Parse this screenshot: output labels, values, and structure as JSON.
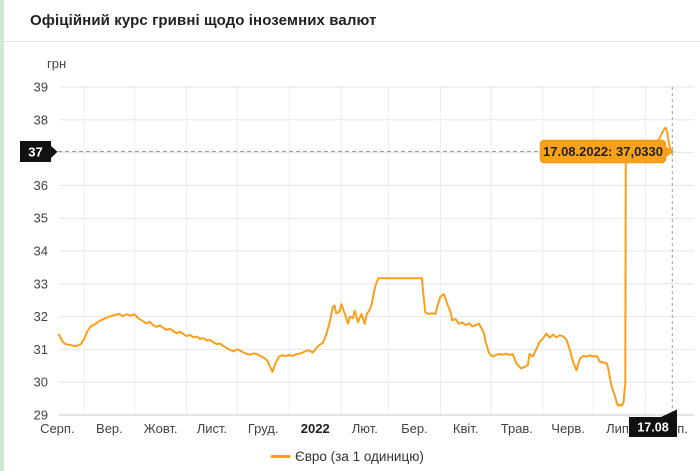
{
  "header": {
    "title": "Офіційний курс гривні щодо іноземних валют"
  },
  "legend": {
    "label": "Євро (за 1 одиницю)"
  },
  "colors": {
    "series": "#f8a01e",
    "tooltip_bg": "#f9a11b",
    "tooltip_border": "#e18d00",
    "tooltip_text": "#222222",
    "badge_bg": "#111111",
    "badge_text": "#ffffff",
    "grid": "#e6e6e6",
    "axis_line": "#c9c9c9",
    "tick_text": "#424242",
    "accent_left_border": "#cfe9d4",
    "crosshair": "#9b9b9b"
  },
  "chart_data": {
    "type": "line",
    "title": "Офіційний курс гривні щодо іноземних валют",
    "ylabel": "грн",
    "xlabel": "",
    "ylim": [
      29,
      39
    ],
    "yticks": [
      29,
      30,
      31,
      32,
      33,
      34,
      35,
      36,
      37,
      38,
      39
    ],
    "x_unit": "days since 17.08.2021",
    "xlim": [
      0,
      378
    ],
    "grid": true,
    "legend_position": "bottom-center",
    "xticklabels": [
      {
        "label": "Серп.",
        "day": -1,
        "bold": false
      },
      {
        "label": "Вер.",
        "day": 30,
        "bold": false
      },
      {
        "label": "Жовт.",
        "day": 60.5,
        "bold": false
      },
      {
        "label": "Лист.",
        "day": 91,
        "bold": false
      },
      {
        "label": "Груд.",
        "day": 121.5,
        "bold": false
      },
      {
        "label": "2022",
        "day": 152.5,
        "bold": true
      },
      {
        "label": "Лют.",
        "day": 182,
        "bold": false
      },
      {
        "label": "Бер.",
        "day": 211.5,
        "bold": false
      },
      {
        "label": "Квіт.",
        "day": 242,
        "bold": false
      },
      {
        "label": "Трав.",
        "day": 272.5,
        "bold": false
      },
      {
        "label": "Черв.",
        "day": 303,
        "bold": false
      },
      {
        "label": "Лип.",
        "day": 333.5,
        "bold": false
      },
      {
        "label": "Серп.",
        "day": 364,
        "bold": false
      }
    ],
    "month_gridline_days": [
      15,
      45,
      76,
      106,
      137,
      168,
      196,
      227,
      257,
      288,
      318,
      349
    ],
    "series": [
      {
        "name": "Євро (за 1 одиницю)",
        "color": "#f8a01e",
        "data": [
          [
            0,
            31.45
          ],
          [
            2,
            31.24
          ],
          [
            4,
            31.16
          ],
          [
            7,
            31.13
          ],
          [
            10,
            31.1
          ],
          [
            13,
            31.16
          ],
          [
            15,
            31.32
          ],
          [
            17,
            31.57
          ],
          [
            19,
            31.7
          ],
          [
            21,
            31.76
          ],
          [
            24,
            31.86
          ],
          [
            27,
            31.94
          ],
          [
            30,
            32.0
          ],
          [
            33,
            32.05
          ],
          [
            36,
            32.08
          ],
          [
            38,
            32.01
          ],
          [
            40,
            32.07
          ],
          [
            43,
            32.03
          ],
          [
            45,
            32.07
          ],
          [
            47,
            31.95
          ],
          [
            50,
            31.86
          ],
          [
            52,
            31.79
          ],
          [
            54,
            31.84
          ],
          [
            56,
            31.74
          ],
          [
            58,
            31.69
          ],
          [
            60,
            31.73
          ],
          [
            62,
            31.66
          ],
          [
            64,
            31.59
          ],
          [
            66,
            31.63
          ],
          [
            68,
            31.56
          ],
          [
            70,
            31.49
          ],
          [
            72,
            31.54
          ],
          [
            74,
            31.47
          ],
          [
            76,
            31.41
          ],
          [
            78,
            31.44
          ],
          [
            80,
            31.37
          ],
          [
            82,
            31.39
          ],
          [
            84,
            31.32
          ],
          [
            86,
            31.34
          ],
          [
            88,
            31.27
          ],
          [
            90,
            31.29
          ],
          [
            92,
            31.21
          ],
          [
            94,
            31.16
          ],
          [
            96,
            31.18
          ],
          [
            98,
            31.09
          ],
          [
            100,
            31.04
          ],
          [
            102,
            30.98
          ],
          [
            104,
            30.94
          ],
          [
            106,
            31.0
          ],
          [
            108,
            30.95
          ],
          [
            110,
            30.9
          ],
          [
            112,
            30.86
          ],
          [
            114,
            30.84
          ],
          [
            116,
            30.88
          ],
          [
            118,
            30.85
          ],
          [
            120,
            30.8
          ],
          [
            122,
            30.74
          ],
          [
            124,
            30.65
          ],
          [
            125,
            30.55
          ],
          [
            127,
            30.31
          ],
          [
            129,
            30.6
          ],
          [
            131,
            30.78
          ],
          [
            133,
            30.82
          ],
          [
            135,
            30.8
          ],
          [
            137,
            30.83
          ],
          [
            139,
            30.8
          ],
          [
            141,
            30.85
          ],
          [
            143,
            30.87
          ],
          [
            145,
            30.9
          ],
          [
            147,
            30.96
          ],
          [
            149,
            30.97
          ],
          [
            151,
            30.9
          ],
          [
            153,
            31.03
          ],
          [
            155,
            31.13
          ],
          [
            157,
            31.2
          ],
          [
            159,
            31.45
          ],
          [
            161,
            31.8
          ],
          [
            163,
            32.3
          ],
          [
            164,
            32.34
          ],
          [
            165,
            32.1
          ],
          [
            167,
            32.15
          ],
          [
            168,
            32.38
          ],
          [
            170,
            32.1
          ],
          [
            172,
            31.78
          ],
          [
            173,
            32.0
          ],
          [
            175,
            31.95
          ],
          [
            176,
            32.18
          ],
          [
            178,
            31.83
          ],
          [
            180,
            32.08
          ],
          [
            182,
            31.78
          ],
          [
            183,
            32.05
          ],
          [
            185,
            32.23
          ],
          [
            186,
            32.35
          ],
          [
            188,
            32.89
          ],
          [
            190,
            33.17
          ],
          [
            196,
            33.17
          ],
          [
            202,
            33.17
          ],
          [
            209,
            33.17
          ],
          [
            216,
            33.17
          ],
          [
            217,
            32.6
          ],
          [
            218,
            32.13
          ],
          [
            220,
            32.08
          ],
          [
            222,
            32.1
          ],
          [
            224,
            32.08
          ],
          [
            226,
            32.45
          ],
          [
            227,
            32.6
          ],
          [
            229,
            32.69
          ],
          [
            230,
            32.55
          ],
          [
            231,
            32.4
          ],
          [
            233,
            32.15
          ],
          [
            234,
            31.88
          ],
          [
            236,
            31.93
          ],
          [
            238,
            31.78
          ],
          [
            240,
            31.82
          ],
          [
            242,
            31.74
          ],
          [
            244,
            31.8
          ],
          [
            246,
            31.7
          ],
          [
            248,
            31.74
          ],
          [
            250,
            31.78
          ],
          [
            251,
            31.68
          ],
          [
            252,
            31.6
          ],
          [
            253,
            31.47
          ],
          [
            254,
            31.2
          ],
          [
            256,
            30.88
          ],
          [
            258,
            30.78
          ],
          [
            260,
            30.83
          ],
          [
            262,
            30.86
          ],
          [
            264,
            30.84
          ],
          [
            266,
            30.87
          ],
          [
            268,
            30.83
          ],
          [
            270,
            30.86
          ],
          [
            272,
            30.6
          ],
          [
            273,
            30.53
          ],
          [
            275,
            30.42
          ],
          [
            277,
            30.46
          ],
          [
            279,
            30.52
          ],
          [
            280,
            30.86
          ],
          [
            282,
            30.78
          ],
          [
            284,
            31.0
          ],
          [
            286,
            31.23
          ],
          [
            288,
            31.33
          ],
          [
            290,
            31.48
          ],
          [
            292,
            31.36
          ],
          [
            294,
            31.45
          ],
          [
            296,
            31.37
          ],
          [
            298,
            31.43
          ],
          [
            300,
            31.4
          ],
          [
            302,
            31.3
          ],
          [
            304,
            31.0
          ],
          [
            306,
            30.6
          ],
          [
            308,
            30.36
          ],
          [
            310,
            30.72
          ],
          [
            312,
            30.8
          ],
          [
            314,
            30.78
          ],
          [
            316,
            30.82
          ],
          [
            318,
            30.78
          ],
          [
            320,
            30.8
          ],
          [
            322,
            30.62
          ],
          [
            324,
            30.6
          ],
          [
            326,
            30.57
          ],
          [
            327,
            30.4
          ],
          [
            328,
            30.1
          ],
          [
            329,
            29.86
          ],
          [
            330,
            29.71
          ],
          [
            331,
            29.56
          ],
          [
            332,
            29.35
          ],
          [
            333,
            29.28
          ],
          [
            334,
            29.32
          ],
          [
            335,
            29.28
          ],
          [
            336,
            29.4
          ],
          [
            336.6,
            29.76
          ],
          [
            337,
            29.95
          ],
          [
            337.3,
            36.9
          ],
          [
            338,
            37.08
          ],
          [
            340,
            36.94
          ],
          [
            342,
            37.06
          ],
          [
            344,
            36.98
          ],
          [
            346,
            37.1
          ],
          [
            348,
            37.25
          ],
          [
            349,
            37.15
          ],
          [
            350,
            37.3
          ],
          [
            351,
            37.18
          ],
          [
            352,
            37.28
          ],
          [
            354,
            37.18
          ],
          [
            356,
            37.32
          ],
          [
            358,
            37.5
          ],
          [
            360,
            37.7
          ],
          [
            361,
            37.76
          ],
          [
            362,
            37.62
          ],
          [
            363,
            37.28
          ],
          [
            364,
            37.08
          ],
          [
            365,
            37.033
          ]
        ]
      }
    ],
    "highlight": {
      "tooltip": "17.08.2022: 37,0330",
      "date": "17.08.2022",
      "value": 37.033,
      "day": 365,
      "y_badge": "37",
      "x_badge": "17.08"
    }
  }
}
